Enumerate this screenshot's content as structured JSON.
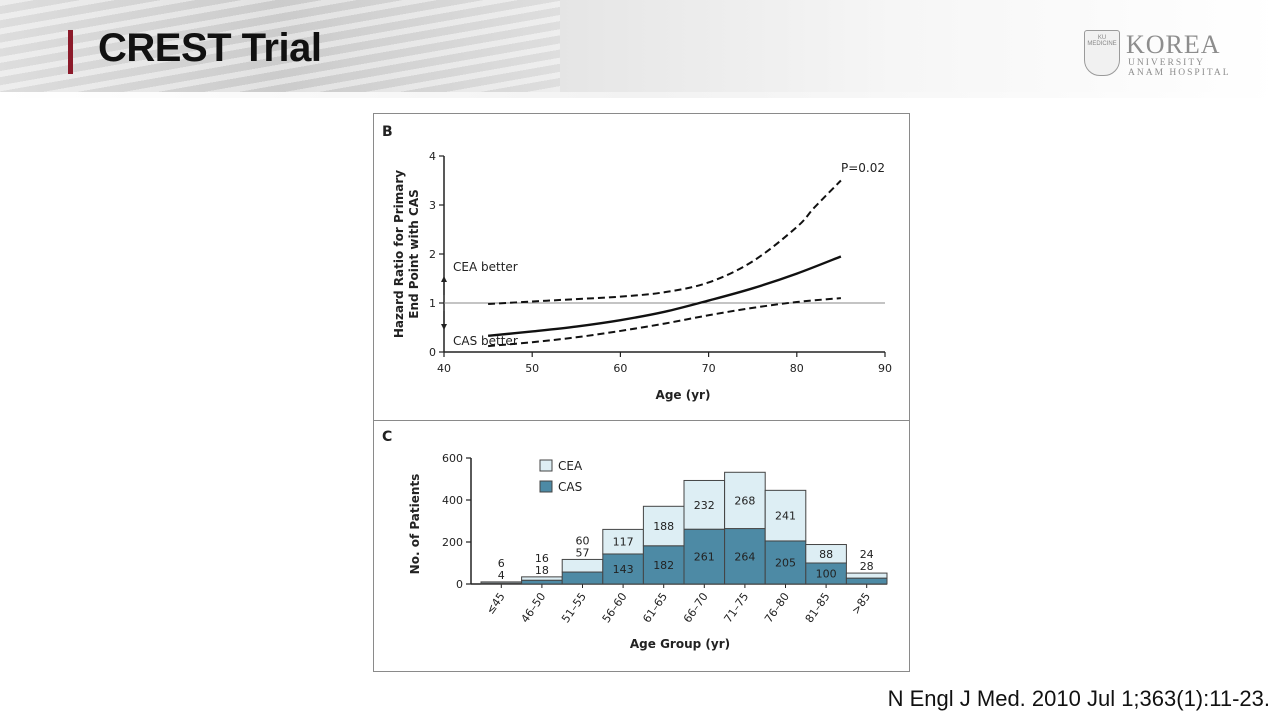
{
  "slide": {
    "title": "CREST Trial",
    "citation": "N Engl J Med. 2010 Jul 1;363(1):11-23."
  },
  "logo": {
    "shield_text": "KU MEDICINE",
    "name": "KOREA",
    "line1": "UNIVERSITY",
    "line2": "ANAM HOSPITAL"
  },
  "chart_data": [
    {
      "type": "line",
      "panel_label": "B",
      "xlabel": "Age (yr)",
      "ylabel_lines": [
        "Hazard Ratio for Primary",
        "End Point with CAS"
      ],
      "xlim": [
        40,
        90
      ],
      "ylim": [
        0,
        4
      ],
      "xticks": [
        40,
        50,
        60,
        70,
        80,
        90
      ],
      "yticks": [
        0,
        1,
        2,
        3,
        4
      ],
      "reference_line": 1,
      "annotations": {
        "p_value": "P=0.02",
        "upper": "CEA better",
        "lower": "CAS better"
      },
      "series": [
        {
          "style": "solid",
          "x": [
            45,
            50,
            55,
            60,
            65,
            70,
            75,
            80,
            85
          ],
          "y": [
            0.33,
            0.42,
            0.52,
            0.65,
            0.82,
            1.05,
            1.3,
            1.6,
            1.95
          ]
        },
        {
          "style": "dashed",
          "x": [
            45,
            50,
            55,
            60,
            65,
            70,
            75,
            80,
            82,
            85
          ],
          "y": [
            0.98,
            1.03,
            1.08,
            1.13,
            1.22,
            1.42,
            1.85,
            2.55,
            2.95,
            3.5
          ]
        },
        {
          "style": "dashed",
          "x": [
            45,
            50,
            55,
            60,
            65,
            70,
            75,
            80,
            85
          ],
          "y": [
            0.12,
            0.2,
            0.3,
            0.43,
            0.58,
            0.75,
            0.9,
            1.02,
            1.1
          ]
        }
      ]
    },
    {
      "type": "bar",
      "stacked": true,
      "panel_label": "C",
      "xlabel": "Age Group (yr)",
      "ylabel": "No. of Patients",
      "ylim": [
        0,
        600
      ],
      "yticks": [
        0,
        200,
        400,
        600
      ],
      "categories": [
        "≤45",
        "46–50",
        "51–55",
        "56–60",
        "61–65",
        "66–70",
        "71–75",
        "76–80",
        "81–85",
        ">85"
      ],
      "series": [
        {
          "name": "CAS",
          "color": "#4d8aa5",
          "values": [
            4,
            18,
            57,
            143,
            182,
            261,
            264,
            205,
            100,
            28
          ]
        },
        {
          "name": "CEA",
          "color": "#ddeef4",
          "values": [
            6,
            16,
            60,
            117,
            188,
            232,
            268,
            241,
            88,
            24
          ]
        }
      ],
      "legend_position": "top-left",
      "border_color": "#444444"
    }
  ]
}
